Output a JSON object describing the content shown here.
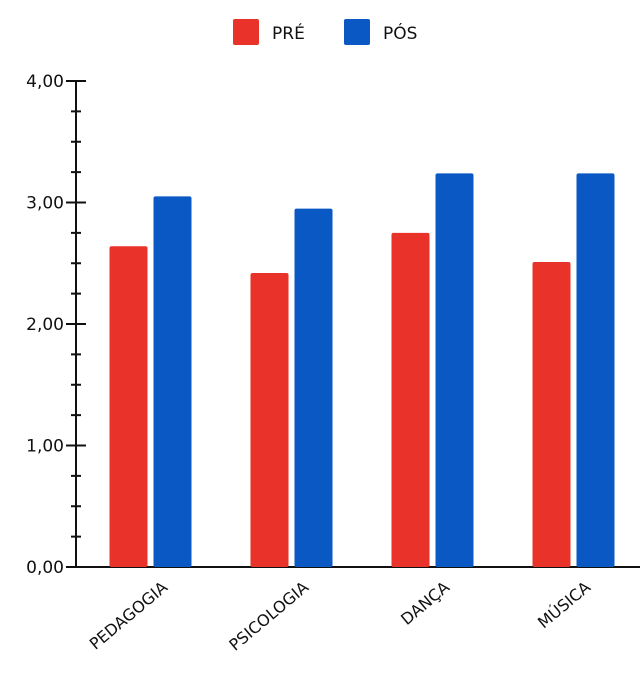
{
  "chart_data": {
    "type": "bar",
    "categories": [
      "PEDAGOGIA",
      "PSICOLOGIA",
      "DANÇA",
      "MÚSICA"
    ],
    "series": [
      {
        "name": "PRÉ",
        "values": [
          2.64,
          2.42,
          2.75,
          2.51
        ],
        "color": "#e8322a"
      },
      {
        "name": "PÓS",
        "values": [
          3.05,
          2.95,
          3.24,
          3.24
        ],
        "color": "#0a58c4"
      }
    ],
    "yticks": [
      "0,00",
      "1,00",
      "2,00",
      "3,00",
      "4,00"
    ],
    "ylim": [
      0,
      4
    ],
    "xlabel": "",
    "ylabel": "",
    "legend_position": "top-center",
    "grid": false
  }
}
